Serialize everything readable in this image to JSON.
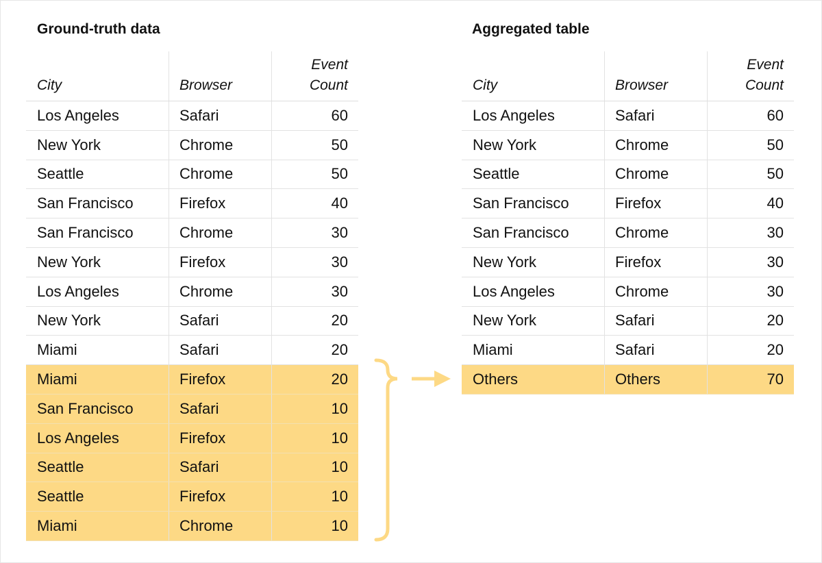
{
  "highlight_color": "#fdd985",
  "left": {
    "title": "Ground-truth data",
    "headers": [
      "City",
      "Browser",
      "Event Count"
    ],
    "rows": [
      {
        "city": "Los Angeles",
        "browser": "Safari",
        "count": "60",
        "highlighted": false
      },
      {
        "city": "New York",
        "browser": "Chrome",
        "count": "50",
        "highlighted": false
      },
      {
        "city": "Seattle",
        "browser": "Chrome",
        "count": "50",
        "highlighted": false
      },
      {
        "city": "San Francisco",
        "browser": "Firefox",
        "count": "40",
        "highlighted": false
      },
      {
        "city": "San Francisco",
        "browser": "Chrome",
        "count": "30",
        "highlighted": false
      },
      {
        "city": "New York",
        "browser": "Firefox",
        "count": "30",
        "highlighted": false
      },
      {
        "city": "Los Angeles",
        "browser": "Chrome",
        "count": "30",
        "highlighted": false
      },
      {
        "city": "New York",
        "browser": "Safari",
        "count": "20",
        "highlighted": false
      },
      {
        "city": "Miami",
        "browser": "Safari",
        "count": "20",
        "highlighted": false
      },
      {
        "city": "Miami",
        "browser": "Firefox",
        "count": "20",
        "highlighted": true
      },
      {
        "city": "San Francisco",
        "browser": "Safari",
        "count": "10",
        "highlighted": true
      },
      {
        "city": "Los Angeles",
        "browser": "Firefox",
        "count": "10",
        "highlighted": true
      },
      {
        "city": "Seattle",
        "browser": "Safari",
        "count": "10",
        "highlighted": true
      },
      {
        "city": "Seattle",
        "browser": "Firefox",
        "count": "10",
        "highlighted": true
      },
      {
        "city": "Miami",
        "browser": "Chrome",
        "count": "10",
        "highlighted": true
      }
    ]
  },
  "right": {
    "title": "Aggregated table",
    "headers": [
      "City",
      "Browser",
      "Event Count"
    ],
    "rows": [
      {
        "city": "Los Angeles",
        "browser": "Safari",
        "count": "60",
        "highlighted": false
      },
      {
        "city": "New York",
        "browser": "Chrome",
        "count": "50",
        "highlighted": false
      },
      {
        "city": "Seattle",
        "browser": "Chrome",
        "count": "50",
        "highlighted": false
      },
      {
        "city": "San Francisco",
        "browser": "Firefox",
        "count": "40",
        "highlighted": false
      },
      {
        "city": "San Francisco",
        "browser": "Chrome",
        "count": "30",
        "highlighted": false
      },
      {
        "city": "New York",
        "browser": "Firefox",
        "count": "30",
        "highlighted": false
      },
      {
        "city": "Los Angeles",
        "browser": "Chrome",
        "count": "30",
        "highlighted": false
      },
      {
        "city": "New York",
        "browser": "Safari",
        "count": "20",
        "highlighted": false
      },
      {
        "city": "Miami",
        "browser": "Safari",
        "count": "20",
        "highlighted": false
      },
      {
        "city": "Others",
        "browser": "Others",
        "count": "70",
        "highlighted": true
      }
    ]
  }
}
